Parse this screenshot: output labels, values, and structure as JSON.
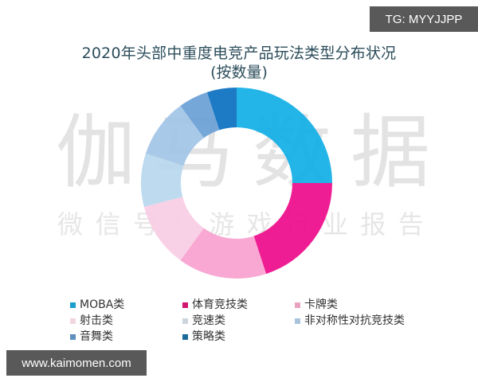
{
  "badge": {
    "text": "TG: MYYJJPP"
  },
  "banner": {
    "text": "www.kaimomen.com"
  },
  "watermark": {
    "big": [
      "伽",
      "马",
      "数",
      "据"
    ],
    "small": [
      "微",
      "信",
      "号",
      "：",
      "游",
      "戏",
      "行",
      "业",
      "报",
      "告"
    ]
  },
  "chart_data": {
    "type": "pie",
    "subtype": "donut",
    "title": "2020年头部中重度电竞产品玩法类型分布状况",
    "subtitle": "(按数量)",
    "unit": "percent (estimated from slice angles)",
    "categories": [
      "MOBA类",
      "体育竞技类",
      "卡牌类",
      "射击类",
      "竞速类",
      "非对称性对抗竞技类",
      "音舞类",
      "策略类"
    ],
    "values": [
      25,
      20,
      15,
      11,
      9,
      10,
      5,
      5
    ],
    "colors": [
      "#10aee6",
      "#ee0a8a",
      "#f7a1ce",
      "#f8cde4",
      "#b9d7ee",
      "#a2c4e6",
      "#6a9fd6",
      "#0a6fc0"
    ],
    "legend_colors": [
      "#1a9fcc",
      "#d0136f",
      "#e8a2bf",
      "#f1d6e0",
      "#cdd5de",
      "#a9c3dc",
      "#5f8fbd",
      "#1c6a9a"
    ],
    "start_angle": "12 o'clock, clockwise",
    "legend_position": "bottom",
    "center": [
      297,
      230
    ],
    "outer_radius": 120,
    "inner_radius": 70
  },
  "legend": {
    "items": [
      {
        "label": "MOBA类",
        "color": "#1a9fcc"
      },
      {
        "label": "体育竞技类",
        "color": "#d0136f"
      },
      {
        "label": "卡牌类",
        "color": "#e8a2bf"
      },
      {
        "label": "射击类",
        "color": "#f1d6e0"
      },
      {
        "label": "竞速类",
        "color": "#cdd5de"
      },
      {
        "label": "非对称性对抗竞技类",
        "color": "#a9c3dc"
      },
      {
        "label": "音舞类",
        "color": "#5f8fbd"
      },
      {
        "label": "策略类",
        "color": "#1c6a9a"
      }
    ]
  }
}
